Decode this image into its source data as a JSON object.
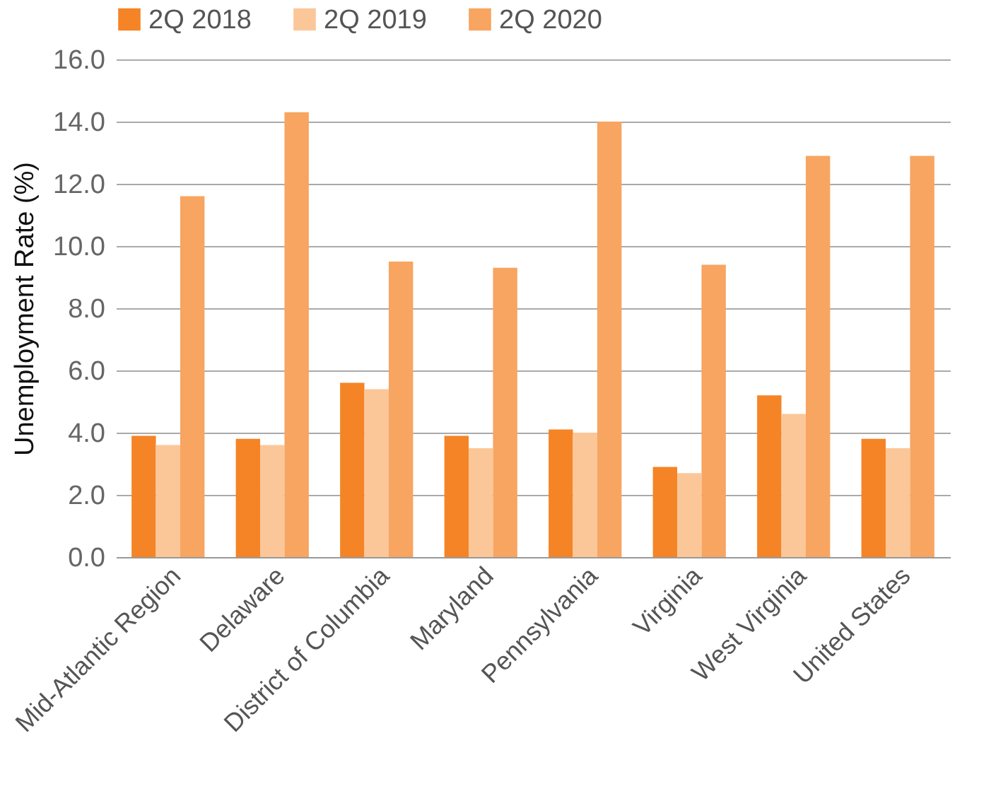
{
  "chart_data": {
    "type": "bar",
    "ylabel": "Unemployment Rate (%)",
    "categories": [
      "Mid-Atlantic Region",
      "Delaware",
      "District of Columbia",
      "Maryland",
      "Pennsylvania",
      "Virginia",
      "West Virginia",
      "United States"
    ],
    "series": [
      {
        "name": "2Q 2018",
        "color": "#f58426",
        "values": [
          3.9,
          3.8,
          5.6,
          3.9,
          4.1,
          2.9,
          5.2,
          3.8
        ]
      },
      {
        "name": "2Q 2019",
        "color": "#fbc799",
        "values": [
          3.6,
          3.6,
          5.4,
          3.5,
          4.0,
          2.7,
          4.6,
          3.5
        ]
      },
      {
        "name": "2Q 2020",
        "color": "#f7a561",
        "values": [
          11.6,
          14.3,
          9.5,
          9.3,
          14.0,
          9.4,
          12.9,
          12.9
        ]
      }
    ],
    "ylim": [
      0,
      16
    ],
    "yticks": [
      {
        "value": 0,
        "label": "0.0"
      },
      {
        "value": 2,
        "label": "2.0"
      },
      {
        "value": 4,
        "label": "4.0"
      },
      {
        "value": 6,
        "label": "6.0"
      },
      {
        "value": 8,
        "label": "8.0"
      },
      {
        "value": 10,
        "label": "10.0"
      },
      {
        "value": 12,
        "label": "12.0"
      },
      {
        "value": 14,
        "label": "14.0"
      },
      {
        "value": 16,
        "label": "16.0"
      }
    ],
    "grid": "y",
    "legend": "top"
  }
}
